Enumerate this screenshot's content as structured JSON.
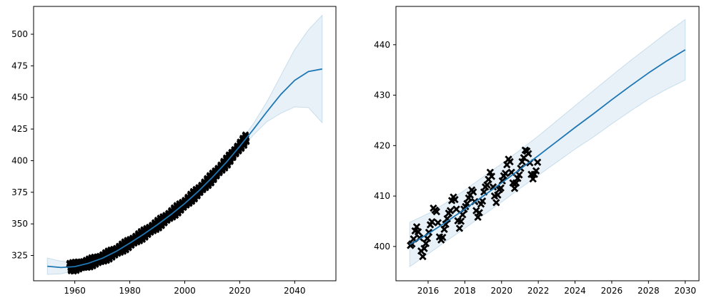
{
  "chart_data": [
    {
      "type": "line",
      "title": "",
      "xlabel": "",
      "ylabel": "",
      "xlim": [
        1945,
        2055
      ],
      "ylim": [
        305,
        522
      ],
      "x_ticks": [
        1960,
        1980,
        2000,
        2020,
        2040
      ],
      "y_ticks": [
        325,
        350,
        375,
        400,
        425,
        450,
        475,
        500
      ],
      "grid": false,
      "legend": "none",
      "series": [
        {
          "kind": "mean_line",
          "color": "#1f77b4",
          "x": [
            1950,
            1955,
            1960,
            1965,
            1970,
            1975,
            1980,
            1985,
            1990,
            1995,
            2000,
            2005,
            2010,
            2015,
            2020,
            2025,
            2030,
            2035,
            2040,
            2045,
            2050
          ],
          "y": [
            316.5,
            315.5,
            316.2,
            318.9,
            322.8,
            328.2,
            334.8,
            341.8,
            349.3,
            357.4,
            366.1,
            375.9,
            386.7,
            398.4,
            411.3,
            424.8,
            439.0,
            452.5,
            463.5,
            470.5,
            472.5
          ]
        },
        {
          "kind": "confidence_band",
          "color": "#1f77b4",
          "opacity": 0.1,
          "x": [
            1950,
            1955,
            1960,
            1965,
            1970,
            1975,
            1980,
            1985,
            1990,
            1995,
            2000,
            2005,
            2010,
            2015,
            2020,
            2025,
            2030,
            2035,
            2040,
            2045,
            2050
          ],
          "upper": [
            323.0,
            320.5,
            319.5,
            321.9,
            325.8,
            331.2,
            337.8,
            344.8,
            352.3,
            360.4,
            369.1,
            378.9,
            389.7,
            401.4,
            414.3,
            429.3,
            447.0,
            467.5,
            488.0,
            503.5,
            515.0
          ],
          "lower": [
            310.0,
            310.5,
            312.9,
            315.9,
            319.8,
            325.2,
            331.8,
            338.8,
            346.3,
            354.4,
            363.1,
            372.9,
            383.7,
            395.4,
            408.3,
            420.3,
            431.0,
            437.5,
            442.5,
            442.0,
            430.0
          ]
        },
        {
          "kind": "observations",
          "marker": "x",
          "color": "#000000",
          "x_range": [
            1958,
            2022.5
          ],
          "follows": "mean_line",
          "seasonal_amplitude": 3.2
        }
      ]
    },
    {
      "type": "line",
      "title": "",
      "xlabel": "",
      "ylabel": "",
      "xlim": [
        2014.25,
        2030.75
      ],
      "ylim": [
        393.2,
        447.6
      ],
      "x_ticks": [
        2016,
        2018,
        2020,
        2022,
        2024,
        2026,
        2028,
        2030
      ],
      "y_ticks": [
        400,
        410,
        420,
        430,
        440
      ],
      "grid": false,
      "legend": "none",
      "series": [
        {
          "kind": "mean_line",
          "color": "#1f77b4",
          "x": [
            2015,
            2016,
            2017,
            2018,
            2019,
            2020,
            2021,
            2022,
            2023,
            2024,
            2025,
            2026,
            2027,
            2028,
            2029,
            2030
          ],
          "y": [
            400.4,
            402.5,
            404.9,
            407.4,
            410.0,
            412.6,
            415.3,
            418.0,
            420.8,
            423.6,
            426.3,
            429.1,
            431.8,
            434.4,
            436.8,
            439.0
          ]
        },
        {
          "kind": "confidence_band",
          "color": "#1f77b4",
          "opacity": 0.1,
          "x": [
            2015,
            2016,
            2017,
            2018,
            2019,
            2020,
            2021,
            2022,
            2023,
            2024,
            2025,
            2026,
            2027,
            2028,
            2029,
            2030
          ],
          "upper": [
            404.8,
            406.5,
            408.7,
            411.2,
            413.8,
            416.4,
            419.1,
            421.9,
            424.9,
            427.9,
            430.9,
            433.9,
            436.8,
            439.6,
            442.4,
            445.0
          ],
          "lower": [
            396.0,
            398.5,
            401.1,
            403.6,
            406.2,
            408.8,
            411.5,
            414.1,
            416.7,
            419.3,
            421.7,
            424.3,
            426.8,
            429.2,
            431.2,
            433.0
          ]
        },
        {
          "kind": "observations",
          "marker": "x",
          "color": "#000000",
          "x": [
            2015.04,
            2015.12,
            2015.21,
            2015.29,
            2015.38,
            2015.46,
            2015.54,
            2015.62,
            2015.71,
            2015.79,
            2015.88,
            2015.96,
            2016.04,
            2016.12,
            2016.21,
            2016.29,
            2016.38,
            2016.46,
            2016.54,
            2016.62,
            2016.71,
            2016.79,
            2016.88,
            2016.96,
            2017.04,
            2017.12,
            2017.21,
            2017.29,
            2017.38,
            2017.46,
            2017.54,
            2017.62,
            2017.71,
            2017.79,
            2017.88,
            2017.96,
            2018.04,
            2018.12,
            2018.21,
            2018.29,
            2018.38,
            2018.46,
            2018.54,
            2018.62,
            2018.71,
            2018.79,
            2018.88,
            2018.96,
            2019.04,
            2019.12,
            2019.21,
            2019.29,
            2019.38,
            2019.46,
            2019.54,
            2019.62,
            2019.71,
            2019.79,
            2019.88,
            2019.96,
            2020.04,
            2020.12,
            2020.21,
            2020.29,
            2020.38,
            2020.46,
            2020.54,
            2020.62,
            2020.71,
            2020.79,
            2020.88,
            2020.96,
            2021.04,
            2021.12,
            2021.21,
            2021.29,
            2021.38,
            2021.46,
            2021.54,
            2021.62,
            2021.71,
            2021.79,
            2021.88,
            2021.96
          ],
          "y": [
            400.2,
            400.5,
            401.5,
            403.1,
            403.9,
            402.9,
            401.7,
            399.1,
            398.0,
            399.6,
            400.6,
            401.6,
            402.8,
            404.3,
            404.9,
            407.6,
            407.2,
            406.9,
            404.7,
            401.9,
            401.3,
            401.8,
            403.4,
            404.4,
            405.5,
            406.6,
            407.1,
            409.1,
            409.8,
            409.3,
            407.4,
            405.1,
            403.6,
            405.0,
            406.3,
            407.4,
            407.9,
            408.5,
            409.6,
            410.2,
            411.2,
            410.8,
            408.9,
            407.1,
            405.8,
            406.7,
            408.4,
            409.0,
            410.8,
            411.8,
            412.2,
            413.3,
            414.7,
            413.9,
            411.8,
            410.0,
            408.7,
            410.2,
            411.3,
            411.6,
            413.0,
            414.0,
            414.5,
            416.2,
            417.3,
            416.8,
            414.7,
            412.6,
            411.5,
            412.6,
            413.5,
            414.2,
            415.5,
            416.8,
            417.6,
            419.1,
            418.9,
            418.4,
            416.6,
            414.3,
            413.4,
            414.3,
            415.0,
            416.7
          ]
        }
      ]
    }
  ]
}
